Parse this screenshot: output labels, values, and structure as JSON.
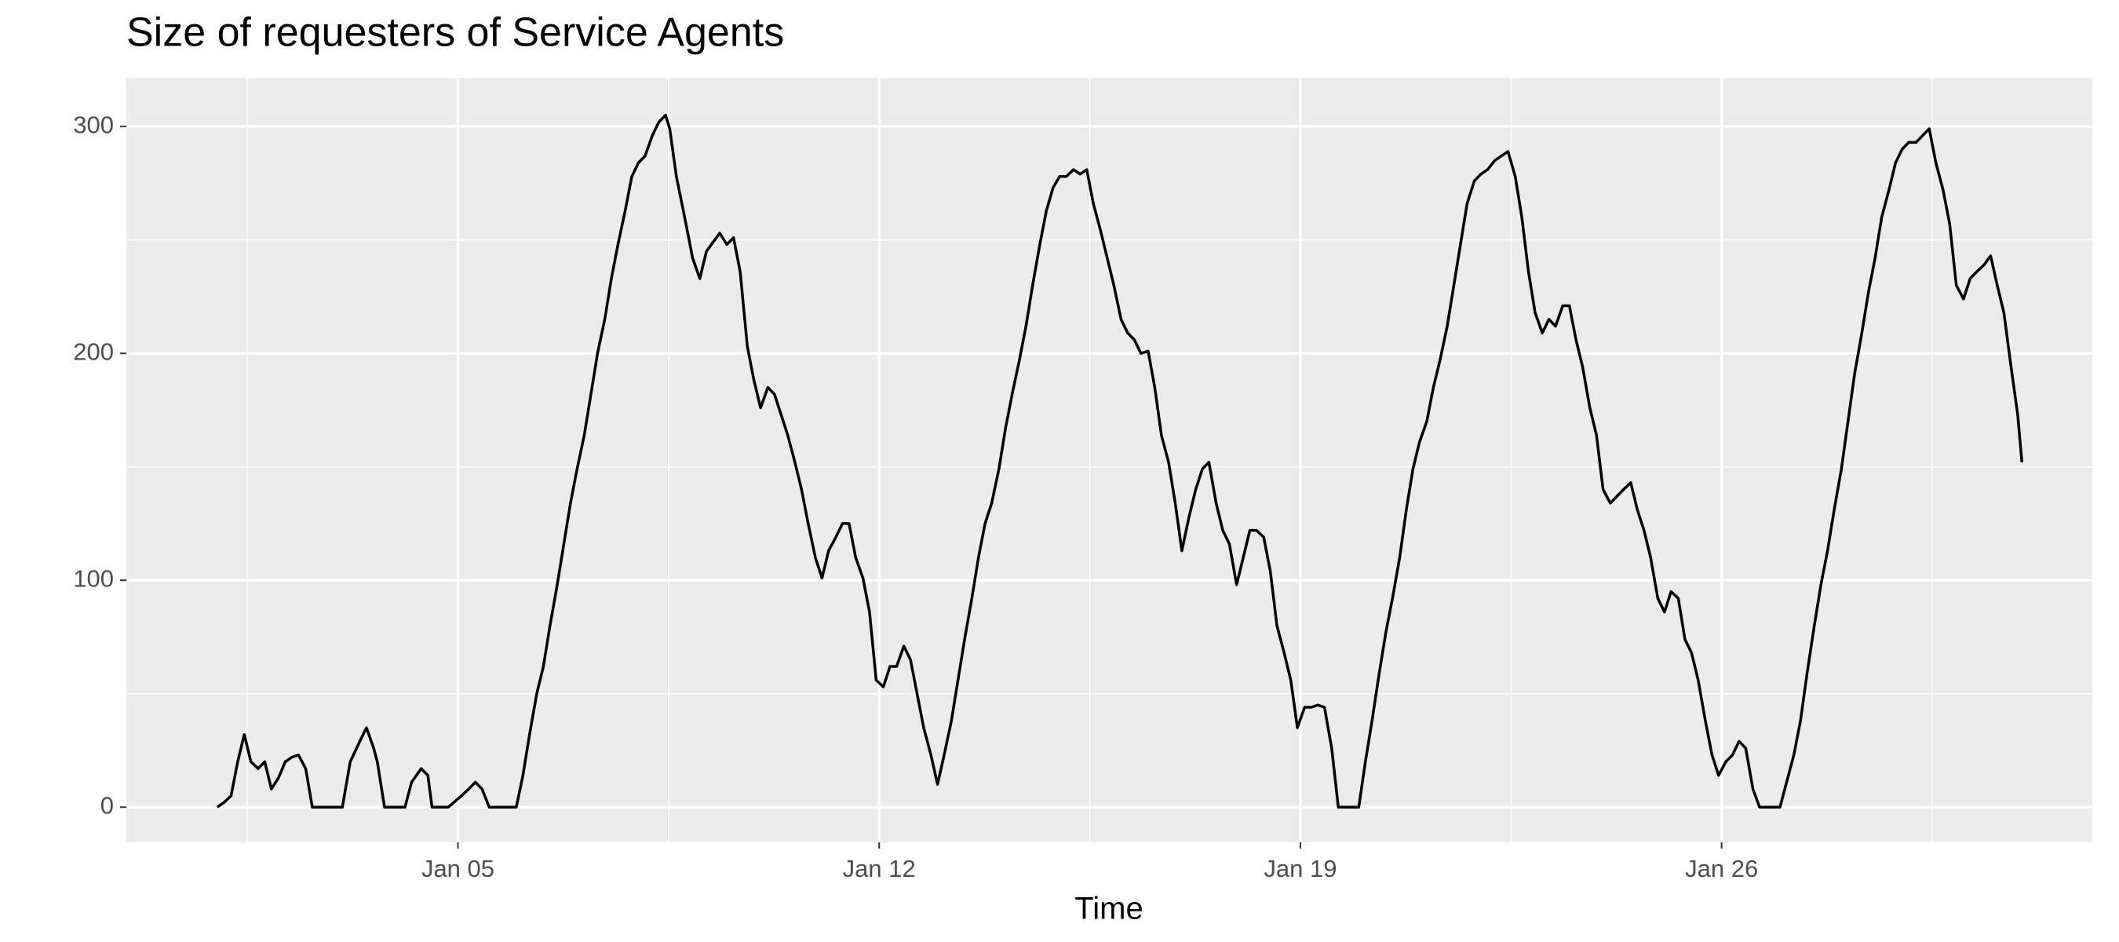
{
  "chart_data": {
    "type": "line",
    "title": "Size of requesters of Service Agents",
    "xlabel": "Time",
    "x": [
      1.0,
      1.11,
      1.23,
      1.34,
      1.45,
      1.56,
      1.68,
      1.79,
      1.9,
      2.02,
      2.13,
      2.24,
      2.35,
      2.47,
      2.58,
      2.81,
      3.08,
      3.21,
      3.37,
      3.48,
      3.6,
      3.66,
      3.78,
      3.94,
      4.12,
      4.23,
      4.39,
      4.5,
      4.57,
      4.84,
      5.06,
      5.18,
      5.29,
      5.4,
      5.52,
      5.97,
      6.08,
      6.19,
      6.31,
      6.42,
      6.53,
      6.65,
      6.76,
      6.87,
      6.98,
      7.1,
      7.21,
      7.32,
      7.44,
      7.55,
      7.66,
      7.78,
      7.89,
      8.0,
      8.11,
      8.23,
      8.34,
      8.45,
      8.52,
      8.63,
      8.79,
      8.9,
      9.02,
      9.13,
      9.24,
      9.35,
      9.47,
      9.58,
      9.69,
      9.81,
      9.92,
      10.03,
      10.15,
      10.26,
      10.37,
      10.48,
      10.6,
      10.71,
      10.82,
      10.94,
      11.05,
      11.16,
      11.28,
      11.39,
      11.5,
      11.61,
      11.73,
      11.84,
      11.95,
      12.07,
      12.18,
      12.29,
      12.41,
      12.52,
      12.63,
      12.74,
      12.86,
      12.97,
      13.08,
      13.2,
      13.31,
      13.42,
      13.54,
      13.65,
      13.76,
      13.87,
      13.99,
      14.1,
      14.21,
      14.33,
      14.44,
      14.55,
      14.67,
      14.78,
      14.89,
      15.0,
      15.11,
      15.23,
      15.34,
      15.45,
      15.56,
      15.68,
      15.79,
      15.9,
      16.02,
      16.13,
      16.24,
      16.35,
      16.47,
      16.58,
      16.69,
      16.81,
      16.92,
      17.03,
      17.15,
      17.26,
      17.37,
      17.48,
      17.6,
      17.71,
      17.82,
      17.94,
      18.05,
      18.16,
      18.27,
      18.39,
      18.5,
      18.61,
      18.73,
      18.84,
      18.95,
      19.07,
      19.18,
      19.29,
      19.4,
      19.52,
      19.63,
      19.97,
      20.08,
      20.19,
      20.31,
      20.42,
      20.53,
      20.65,
      20.76,
      20.87,
      20.98,
      21.1,
      21.21,
      21.32,
      21.44,
      21.55,
      21.66,
      21.77,
      21.89,
      22.0,
      22.11,
      22.23,
      22.34,
      22.45,
      22.57,
      22.68,
      22.79,
      22.9,
      23.02,
      23.13,
      23.24,
      23.36,
      23.47,
      23.58,
      23.69,
      23.81,
      23.92,
      24.03,
      24.15,
      24.26,
      24.37,
      24.49,
      24.6,
      24.71,
      24.82,
      24.94,
      25.05,
      25.16,
      25.28,
      25.39,
      25.5,
      25.61,
      25.73,
      25.84,
      25.95,
      26.07,
      26.18,
      26.29,
      26.4,
      26.52,
      26.63,
      26.97,
      27.08,
      27.2,
      27.31,
      27.42,
      27.54,
      27.65,
      27.76,
      27.87,
      27.99,
      28.1,
      28.21,
      28.33,
      28.44,
      28.55,
      28.66,
      28.78,
      28.89,
      29.0,
      29.11,
      29.23,
      29.34,
      29.45,
      29.56,
      29.68,
      29.79,
      29.9,
      30.02,
      30.13,
      30.24,
      30.36,
      30.47,
      30.58,
      30.69,
      30.81,
      30.92,
      30.99
    ],
    "values": [
      0,
      2,
      5,
      20,
      32,
      20,
      17,
      20,
      8,
      13,
      20,
      22,
      23,
      17,
      0,
      0,
      0,
      20,
      29,
      35,
      26,
      20,
      0,
      0,
      0,
      11,
      17,
      14,
      0,
      0,
      5,
      8,
      11,
      8,
      0,
      0,
      14,
      32,
      50,
      62,
      80,
      98,
      116,
      134,
      149,
      164,
      182,
      200,
      215,
      233,
      248,
      263,
      278,
      284,
      287,
      296,
      302,
      305,
      299,
      278,
      257,
      242,
      233,
      245,
      249,
      253,
      248,
      251,
      236,
      203,
      188,
      176,
      185,
      182,
      173,
      164,
      152,
      140,
      125,
      110,
      101,
      113,
      119,
      125,
      125,
      110,
      101,
      86,
      56,
      53,
      62,
      62,
      71,
      65,
      50,
      35,
      23,
      10,
      23,
      38,
      56,
      74,
      92,
      110,
      125,
      134,
      149,
      167,
      182,
      197,
      212,
      230,
      248,
      263,
      273,
      278,
      278,
      281,
      279,
      281,
      266,
      254,
      242,
      230,
      215,
      209,
      206,
      200,
      201,
      185,
      164,
      152,
      134,
      113,
      128,
      140,
      149,
      152,
      134,
      122,
      116,
      98,
      110,
      122,
      122,
      119,
      104,
      80,
      68,
      56,
      35,
      44,
      44,
      45,
      44,
      26,
      0,
      0,
      20,
      38,
      59,
      77,
      92,
      110,
      131,
      149,
      161,
      170,
      185,
      197,
      212,
      230,
      248,
      266,
      276,
      279,
      281,
      285,
      287,
      289,
      278,
      260,
      236,
      218,
      209,
      215,
      212,
      221,
      221,
      206,
      194,
      176,
      164,
      140,
      134,
      137,
      140,
      143,
      131,
      122,
      110,
      92,
      86,
      95,
      92,
      74,
      68,
      56,
      38,
      23,
      14,
      20,
      23,
      29,
      26,
      8,
      0,
      0,
      11,
      23,
      38,
      59,
      80,
      98,
      113,
      131,
      149,
      170,
      191,
      209,
      227,
      242,
      260,
      272,
      284,
      290,
      293,
      293,
      296,
      299,
      284,
      272,
      257,
      230,
      224,
      233,
      236,
      239,
      243,
      230,
      218,
      194,
      173,
      152
    ],
    "color": "#000000",
    "xlim": [
      -0.51,
      32.16
    ],
    "ylim": [
      -15.5,
      321.5
    ],
    "xticks": [
      {
        "value": 5,
        "label": "Jan 05"
      },
      {
        "value": 12,
        "label": "Jan 12"
      },
      {
        "value": 19,
        "label": "Jan 19"
      },
      {
        "value": 26,
        "label": "Jan 26"
      }
    ],
    "yticks": [
      0,
      100,
      200,
      300
    ],
    "minor_xticks": [
      1.5,
      8.5,
      15.5,
      22.5,
      29.5
    ],
    "minor_yticks": [
      50,
      150,
      250
    ],
    "grid": true
  }
}
